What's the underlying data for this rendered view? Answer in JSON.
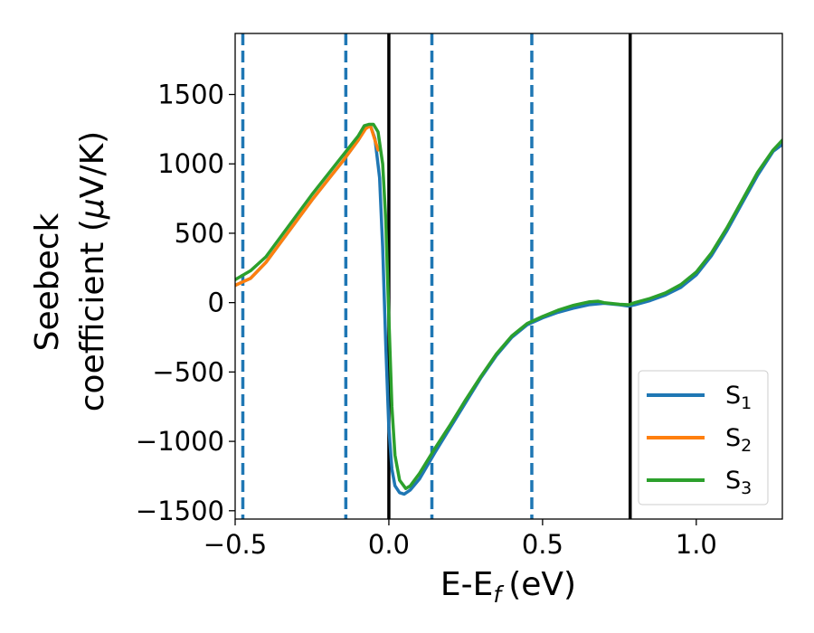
{
  "chart_data": {
    "type": "line",
    "xlabel": "E-E",
    "xlabel_sub": "f",
    "xlabel_unit": "(eV)",
    "ylabel_line1": "Seebeck",
    "ylabel_line2_pre": "coefficient  (",
    "ylabel_mu": "μ",
    "ylabel_line2_post": "V/K)",
    "xlim": [
      -0.5,
      1.28
    ],
    "ylim": [
      -1560,
      1940
    ],
    "xticks": [
      -0.5,
      0.0,
      0.5,
      1.0
    ],
    "xtick_labels": [
      "−0.5",
      "0.0",
      "0.5",
      "1.0"
    ],
    "yticks": [
      -1500,
      -1000,
      -500,
      0,
      500,
      1000,
      1500
    ],
    "ytick_labels": [
      "−1500",
      "−1000",
      "−500",
      "0",
      "500",
      "1000",
      "1500"
    ],
    "vlines": [
      {
        "x": -0.475,
        "style": "dashed",
        "color": "#1f77b4"
      },
      {
        "x": -0.14,
        "style": "dashed",
        "color": "#1f77b4"
      },
      {
        "x": 0.0,
        "style": "solid",
        "color": "#000000"
      },
      {
        "x": 0.14,
        "style": "dashed",
        "color": "#1f77b4"
      },
      {
        "x": 0.465,
        "style": "dashed",
        "color": "#1f77b4"
      },
      {
        "x": 0.785,
        "style": "solid",
        "color": "#000000"
      }
    ],
    "legend": {
      "position": "lower-right",
      "entries": [
        {
          "base": "S",
          "sub": "1",
          "color": "#1f77b4"
        },
        {
          "base": "S",
          "sub": "2",
          "color": "#ff7f0e"
        },
        {
          "base": "S",
          "sub": "3",
          "color": "#2ca02c"
        }
      ]
    },
    "series": [
      {
        "name": "S1",
        "color": "#1f77b4",
        "points": [
          [
            -0.5,
            125
          ],
          [
            -0.45,
            175
          ],
          [
            -0.4,
            290
          ],
          [
            -0.35,
            440
          ],
          [
            -0.3,
            590
          ],
          [
            -0.25,
            740
          ],
          [
            -0.2,
            880
          ],
          [
            -0.15,
            1020
          ],
          [
            -0.1,
            1170
          ],
          [
            -0.075,
            1260
          ],
          [
            -0.06,
            1275
          ],
          [
            -0.045,
            1180
          ],
          [
            -0.03,
            900
          ],
          [
            -0.02,
            400
          ],
          [
            -0.01,
            -300
          ],
          [
            0.0,
            -900
          ],
          [
            0.01,
            -1200
          ],
          [
            0.02,
            -1320
          ],
          [
            0.035,
            -1370
          ],
          [
            0.05,
            -1380
          ],
          [
            0.07,
            -1350
          ],
          [
            0.1,
            -1270
          ],
          [
            0.15,
            -1080
          ],
          [
            0.2,
            -900
          ],
          [
            0.25,
            -720
          ],
          [
            0.3,
            -540
          ],
          [
            0.35,
            -380
          ],
          [
            0.4,
            -250
          ],
          [
            0.45,
            -160
          ],
          [
            0.5,
            -110
          ],
          [
            0.55,
            -70
          ],
          [
            0.6,
            -40
          ],
          [
            0.65,
            -15
          ],
          [
            0.7,
            -5
          ],
          [
            0.75,
            -15
          ],
          [
            0.78,
            -25
          ],
          [
            0.8,
            -15
          ],
          [
            0.85,
            15
          ],
          [
            0.9,
            55
          ],
          [
            0.95,
            110
          ],
          [
            1.0,
            200
          ],
          [
            1.05,
            340
          ],
          [
            1.1,
            520
          ],
          [
            1.15,
            720
          ],
          [
            1.2,
            920
          ],
          [
            1.25,
            1090
          ],
          [
            1.28,
            1140
          ]
        ]
      },
      {
        "name": "S2",
        "color": "#ff7f0e",
        "points": [
          [
            -0.5,
            125
          ],
          [
            -0.45,
            175
          ],
          [
            -0.4,
            290
          ],
          [
            -0.35,
            440
          ],
          [
            -0.3,
            590
          ],
          [
            -0.25,
            740
          ],
          [
            -0.2,
            880
          ],
          [
            -0.15,
            1020
          ],
          [
            -0.1,
            1170
          ],
          [
            -0.075,
            1255
          ],
          [
            -0.06,
            1275
          ],
          [
            -0.045,
            1170
          ],
          [
            -0.035,
            1100
          ]
        ]
      },
      {
        "name": "S3",
        "color": "#2ca02c",
        "points": [
          [
            -0.5,
            165
          ],
          [
            -0.45,
            230
          ],
          [
            -0.4,
            330
          ],
          [
            -0.35,
            480
          ],
          [
            -0.3,
            630
          ],
          [
            -0.25,
            780
          ],
          [
            -0.2,
            920
          ],
          [
            -0.15,
            1060
          ],
          [
            -0.1,
            1200
          ],
          [
            -0.08,
            1275
          ],
          [
            -0.065,
            1285
          ],
          [
            -0.05,
            1285
          ],
          [
            -0.035,
            1230
          ],
          [
            -0.02,
            1000
          ],
          [
            -0.01,
            600
          ],
          [
            0.0,
            -100
          ],
          [
            0.01,
            -750
          ],
          [
            0.02,
            -1100
          ],
          [
            0.035,
            -1280
          ],
          [
            0.055,
            -1340
          ],
          [
            0.07,
            -1320
          ],
          [
            0.1,
            -1230
          ],
          [
            0.15,
            -1050
          ],
          [
            0.2,
            -880
          ],
          [
            0.25,
            -700
          ],
          [
            0.3,
            -530
          ],
          [
            0.35,
            -370
          ],
          [
            0.4,
            -240
          ],
          [
            0.45,
            -150
          ],
          [
            0.5,
            -100
          ],
          [
            0.55,
            -55
          ],
          [
            0.6,
            -20
          ],
          [
            0.65,
            5
          ],
          [
            0.68,
            10
          ],
          [
            0.7,
            0
          ],
          [
            0.75,
            -12
          ],
          [
            0.78,
            -15
          ],
          [
            0.8,
            0
          ],
          [
            0.85,
            30
          ],
          [
            0.9,
            70
          ],
          [
            0.95,
            130
          ],
          [
            1.0,
            220
          ],
          [
            1.05,
            360
          ],
          [
            1.1,
            540
          ],
          [
            1.15,
            740
          ],
          [
            1.2,
            940
          ],
          [
            1.25,
            1100
          ],
          [
            1.28,
            1170
          ]
        ]
      }
    ]
  }
}
